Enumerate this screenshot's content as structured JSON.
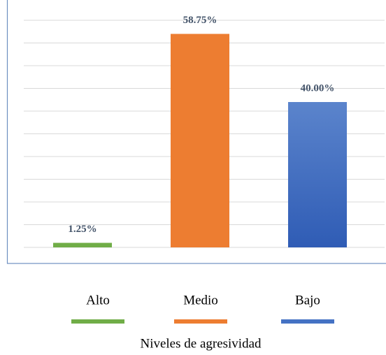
{
  "chart_data": {
    "type": "bar",
    "categories": [
      "Alto",
      "Medio",
      "Bajo"
    ],
    "values": [
      1.25,
      58.75,
      40.0
    ],
    "value_labels": [
      "1.25%",
      "58.75%",
      "40.00%"
    ],
    "colors": [
      "#70ad47",
      "#ed7d31",
      "#4472c4"
    ],
    "ylim": [
      0,
      62.5
    ],
    "yticks": [
      0,
      6.25,
      12.5,
      18.75,
      25,
      31.25,
      37.5,
      43.75,
      50,
      56.25,
      62.5
    ],
    "grid": true,
    "xlabel": "Niveles de agresividad"
  }
}
